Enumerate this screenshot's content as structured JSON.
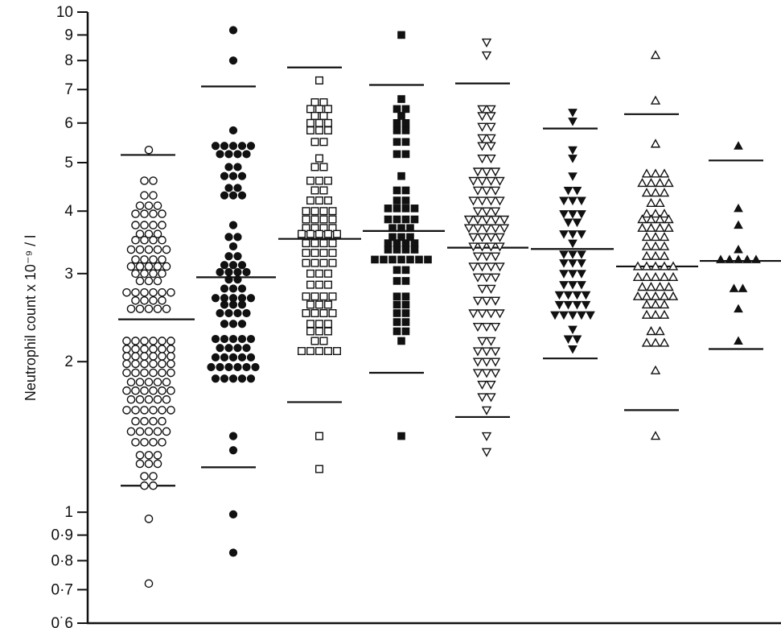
{
  "chart_data": {
    "type": "scatter",
    "title": "",
    "xlabel": "",
    "ylabel": "Neutrophil count  x 10⁻⁹ / l",
    "yscale": "log",
    "ylim": [
      0.6,
      10
    ],
    "grid": false,
    "yticks": [
      {
        "value": 10,
        "label": "10"
      },
      {
        "value": 9,
        "label": "9"
      },
      {
        "value": 8,
        "label": "8"
      },
      {
        "value": 7,
        "label": "7"
      },
      {
        "value": 6,
        "label": "6"
      },
      {
        "value": 5,
        "label": "5"
      },
      {
        "value": 4,
        "label": "4"
      },
      {
        "value": 3,
        "label": "3"
      },
      {
        "value": 2,
        "label": "2"
      },
      {
        "value": 1,
        "label": "1"
      },
      {
        "value": 0.9,
        "label": "0·9"
      },
      {
        "value": 0.8,
        "label": "0·8"
      },
      {
        "value": 0.7,
        "label": "0·7"
      },
      {
        "value": 0.6,
        "label": "0˙6"
      }
    ],
    "groups": [
      {
        "marker": "circle-open",
        "mean": 2.43,
        "upper": 5.18,
        "lower": 1.13,
        "points": [
          {
            "v": 5.3,
            "n": 1
          },
          {
            "v": 4.6,
            "n": 2
          },
          {
            "v": 4.3,
            "n": 2
          },
          {
            "v": 4.1,
            "n": 3
          },
          {
            "v": 3.95,
            "n": 4
          },
          {
            "v": 3.75,
            "n": 4
          },
          {
            "v": 3.6,
            "n": 3
          },
          {
            "v": 3.5,
            "n": 4
          },
          {
            "v": 3.35,
            "n": 5
          },
          {
            "v": 3.2,
            "n": 4
          },
          {
            "v": 3.1,
            "n": 5
          },
          {
            "v": 3.0,
            "n": 4
          },
          {
            "v": 2.9,
            "n": 3
          },
          {
            "v": 2.75,
            "n": 6
          },
          {
            "v": 2.65,
            "n": 4
          },
          {
            "v": 2.55,
            "n": 5
          },
          {
            "v": 2.2,
            "n": 6
          },
          {
            "v": 2.12,
            "n": 6
          },
          {
            "v": 2.05,
            "n": 6
          },
          {
            "v": 1.98,
            "n": 6
          },
          {
            "v": 1.9,
            "n": 6
          },
          {
            "v": 1.82,
            "n": 5
          },
          {
            "v": 1.75,
            "n": 6
          },
          {
            "v": 1.68,
            "n": 5
          },
          {
            "v": 1.6,
            "n": 6
          },
          {
            "v": 1.52,
            "n": 4
          },
          {
            "v": 1.45,
            "n": 5
          },
          {
            "v": 1.38,
            "n": 4
          },
          {
            "v": 1.3,
            "n": 3
          },
          {
            "v": 1.25,
            "n": 3
          },
          {
            "v": 1.18,
            "n": 2
          },
          {
            "v": 1.13,
            "n": 2
          },
          {
            "v": 0.97,
            "n": 1
          },
          {
            "v": 0.72,
            "n": 1
          }
        ]
      },
      {
        "marker": "circle-filled",
        "mean": 2.95,
        "upper": 7.1,
        "lower": 1.23,
        "points": [
          {
            "v": 9.2,
            "n": 1
          },
          {
            "v": 8.0,
            "n": 1
          },
          {
            "v": 5.8,
            "n": 1
          },
          {
            "v": 5.4,
            "n": 5
          },
          {
            "v": 5.2,
            "n": 4
          },
          {
            "v": 4.9,
            "n": 2
          },
          {
            "v": 4.7,
            "n": 3
          },
          {
            "v": 4.45,
            "n": 2
          },
          {
            "v": 4.3,
            "n": 3
          },
          {
            "v": 3.75,
            "n": 1
          },
          {
            "v": 3.55,
            "n": 2
          },
          {
            "v": 3.4,
            "n": 1
          },
          {
            "v": 3.25,
            "n": 2
          },
          {
            "v": 3.12,
            "n": 3
          },
          {
            "v": 3.02,
            "n": 4
          },
          {
            "v": 2.92,
            "n": 2
          },
          {
            "v": 2.8,
            "n": 3
          },
          {
            "v": 2.68,
            "n": 5
          },
          {
            "v": 2.6,
            "n": 3
          },
          {
            "v": 2.5,
            "n": 4
          },
          {
            "v": 2.38,
            "n": 3
          },
          {
            "v": 2.22,
            "n": 5
          },
          {
            "v": 2.13,
            "n": 4
          },
          {
            "v": 2.04,
            "n": 5
          },
          {
            "v": 1.95,
            "n": 6
          },
          {
            "v": 1.85,
            "n": 5
          },
          {
            "v": 1.42,
            "n": 1
          },
          {
            "v": 1.33,
            "n": 1
          },
          {
            "v": 0.99,
            "n": 1
          },
          {
            "v": 0.83,
            "n": 1
          }
        ]
      },
      {
        "marker": "square-open",
        "mean": 3.52,
        "upper": 7.75,
        "lower": 1.66,
        "points": [
          {
            "v": 7.3,
            "n": 1
          },
          {
            "v": 6.6,
            "n": 2
          },
          {
            "v": 6.4,
            "n": 3
          },
          {
            "v": 6.2,
            "n": 2
          },
          {
            "v": 6.0,
            "n": 3
          },
          {
            "v": 5.8,
            "n": 3
          },
          {
            "v": 5.5,
            "n": 2
          },
          {
            "v": 5.1,
            "n": 1
          },
          {
            "v": 4.9,
            "n": 2
          },
          {
            "v": 4.6,
            "n": 3
          },
          {
            "v": 4.4,
            "n": 2
          },
          {
            "v": 4.2,
            "n": 3
          },
          {
            "v": 4.0,
            "n": 4
          },
          {
            "v": 3.85,
            "n": 4
          },
          {
            "v": 3.7,
            "n": 4
          },
          {
            "v": 3.6,
            "n": 5
          },
          {
            "v": 3.45,
            "n": 4
          },
          {
            "v": 3.3,
            "n": 4
          },
          {
            "v": 3.15,
            "n": 4
          },
          {
            "v": 3.0,
            "n": 3
          },
          {
            "v": 2.85,
            "n": 3
          },
          {
            "v": 2.7,
            "n": 4
          },
          {
            "v": 2.6,
            "n": 3
          },
          {
            "v": 2.5,
            "n": 4
          },
          {
            "v": 2.38,
            "n": 3
          },
          {
            "v": 2.3,
            "n": 3
          },
          {
            "v": 2.2,
            "n": 2
          },
          {
            "v": 2.1,
            "n": 5
          },
          {
            "v": 1.42,
            "n": 1
          },
          {
            "v": 1.22,
            "n": 1
          }
        ]
      },
      {
        "marker": "square-filled",
        "mean": 3.65,
        "upper": 7.15,
        "lower": 1.9,
        "points": [
          {
            "v": 9.0,
            "n": 1
          },
          {
            "v": 6.7,
            "n": 1
          },
          {
            "v": 6.4,
            "n": 2
          },
          {
            "v": 6.2,
            "n": 1
          },
          {
            "v": 6.0,
            "n": 2
          },
          {
            "v": 5.8,
            "n": 2
          },
          {
            "v": 5.5,
            "n": 2
          },
          {
            "v": 5.2,
            "n": 2
          },
          {
            "v": 4.7,
            "n": 1
          },
          {
            "v": 4.4,
            "n": 2
          },
          {
            "v": 4.2,
            "n": 2
          },
          {
            "v": 4.05,
            "n": 4
          },
          {
            "v": 3.85,
            "n": 4
          },
          {
            "v": 3.7,
            "n": 3
          },
          {
            "v": 3.55,
            "n": 3
          },
          {
            "v": 3.45,
            "n": 4
          },
          {
            "v": 3.35,
            "n": 4
          },
          {
            "v": 3.2,
            "n": 7
          },
          {
            "v": 3.05,
            "n": 2
          },
          {
            "v": 2.9,
            "n": 2
          },
          {
            "v": 2.7,
            "n": 2
          },
          {
            "v": 2.6,
            "n": 2
          },
          {
            "v": 2.5,
            "n": 2
          },
          {
            "v": 2.4,
            "n": 2
          },
          {
            "v": 2.3,
            "n": 2
          },
          {
            "v": 2.2,
            "n": 1
          },
          {
            "v": 1.42,
            "n": 1
          }
        ]
      },
      {
        "marker": "triangle-down-open",
        "mean": 3.38,
        "upper": 7.2,
        "lower": 1.55,
        "points": [
          {
            "v": 8.7,
            "n": 1
          },
          {
            "v": 8.2,
            "n": 1
          },
          {
            "v": 6.4,
            "n": 2
          },
          {
            "v": 6.2,
            "n": 2
          },
          {
            "v": 5.9,
            "n": 2
          },
          {
            "v": 5.6,
            "n": 2
          },
          {
            "v": 5.4,
            "n": 2
          },
          {
            "v": 5.1,
            "n": 2
          },
          {
            "v": 4.8,
            "n": 3
          },
          {
            "v": 4.6,
            "n": 4
          },
          {
            "v": 4.4,
            "n": 3
          },
          {
            "v": 4.2,
            "n": 4
          },
          {
            "v": 4.0,
            "n": 3
          },
          {
            "v": 3.85,
            "n": 5
          },
          {
            "v": 3.7,
            "n": 5
          },
          {
            "v": 3.55,
            "n": 4
          },
          {
            "v": 3.4,
            "n": 4
          },
          {
            "v": 3.25,
            "n": 3
          },
          {
            "v": 3.1,
            "n": 4
          },
          {
            "v": 2.95,
            "n": 3
          },
          {
            "v": 2.8,
            "n": 2
          },
          {
            "v": 2.65,
            "n": 3
          },
          {
            "v": 2.5,
            "n": 4
          },
          {
            "v": 2.35,
            "n": 3
          },
          {
            "v": 2.2,
            "n": 2
          },
          {
            "v": 2.1,
            "n": 3
          },
          {
            "v": 2.0,
            "n": 3
          },
          {
            "v": 1.9,
            "n": 3
          },
          {
            "v": 1.8,
            "n": 2
          },
          {
            "v": 1.7,
            "n": 2
          },
          {
            "v": 1.6,
            "n": 1
          },
          {
            "v": 1.42,
            "n": 1
          },
          {
            "v": 1.32,
            "n": 1
          }
        ]
      },
      {
        "marker": "triangle-down-filled",
        "mean": 3.36,
        "upper": 5.85,
        "lower": 2.03,
        "points": [
          {
            "v": 6.3,
            "n": 1
          },
          {
            "v": 6.05,
            "n": 1
          },
          {
            "v": 5.3,
            "n": 1
          },
          {
            "v": 5.1,
            "n": 1
          },
          {
            "v": 4.7,
            "n": 1
          },
          {
            "v": 4.4,
            "n": 2
          },
          {
            "v": 4.2,
            "n": 3
          },
          {
            "v": 3.95,
            "n": 3
          },
          {
            "v": 3.8,
            "n": 2
          },
          {
            "v": 3.6,
            "n": 3
          },
          {
            "v": 3.45,
            "n": 1
          },
          {
            "v": 3.28,
            "n": 3
          },
          {
            "v": 3.15,
            "n": 3
          },
          {
            "v": 3.0,
            "n": 3
          },
          {
            "v": 2.85,
            "n": 3
          },
          {
            "v": 2.72,
            "n": 4
          },
          {
            "v": 2.6,
            "n": 4
          },
          {
            "v": 2.48,
            "n": 5
          },
          {
            "v": 2.32,
            "n": 1
          },
          {
            "v": 2.22,
            "n": 2
          },
          {
            "v": 2.12,
            "n": 1
          }
        ]
      },
      {
        "marker": "triangle-up-open",
        "mean": 3.1,
        "upper": 6.25,
        "lower": 1.6,
        "points": [
          {
            "v": 8.2,
            "n": 1
          },
          {
            "v": 6.65,
            "n": 1
          },
          {
            "v": 5.45,
            "n": 1
          },
          {
            "v": 4.75,
            "n": 3
          },
          {
            "v": 4.55,
            "n": 4
          },
          {
            "v": 4.35,
            "n": 3
          },
          {
            "v": 4.15,
            "n": 2
          },
          {
            "v": 3.95,
            "n": 3
          },
          {
            "v": 3.85,
            "n": 4
          },
          {
            "v": 3.7,
            "n": 4
          },
          {
            "v": 3.55,
            "n": 3
          },
          {
            "v": 3.4,
            "n": 3
          },
          {
            "v": 3.25,
            "n": 3
          },
          {
            "v": 3.1,
            "n": 5
          },
          {
            "v": 2.95,
            "n": 5
          },
          {
            "v": 2.82,
            "n": 4
          },
          {
            "v": 2.7,
            "n": 5
          },
          {
            "v": 2.6,
            "n": 3
          },
          {
            "v": 2.48,
            "n": 3
          },
          {
            "v": 2.3,
            "n": 2
          },
          {
            "v": 2.18,
            "n": 3
          },
          {
            "v": 1.92,
            "n": 1
          },
          {
            "v": 1.42,
            "n": 1
          }
        ]
      },
      {
        "marker": "triangle-up-filled",
        "mean": 3.18,
        "upper": 5.05,
        "lower": 2.12,
        "points": [
          {
            "v": 5.4,
            "n": 1
          },
          {
            "v": 4.05,
            "n": 1
          },
          {
            "v": 3.75,
            "n": 1
          },
          {
            "v": 3.35,
            "n": 1
          },
          {
            "v": 3.2,
            "n": 5
          },
          {
            "v": 2.8,
            "n": 2
          },
          {
            "v": 2.55,
            "n": 1
          },
          {
            "v": 2.2,
            "n": 1
          }
        ]
      }
    ]
  }
}
